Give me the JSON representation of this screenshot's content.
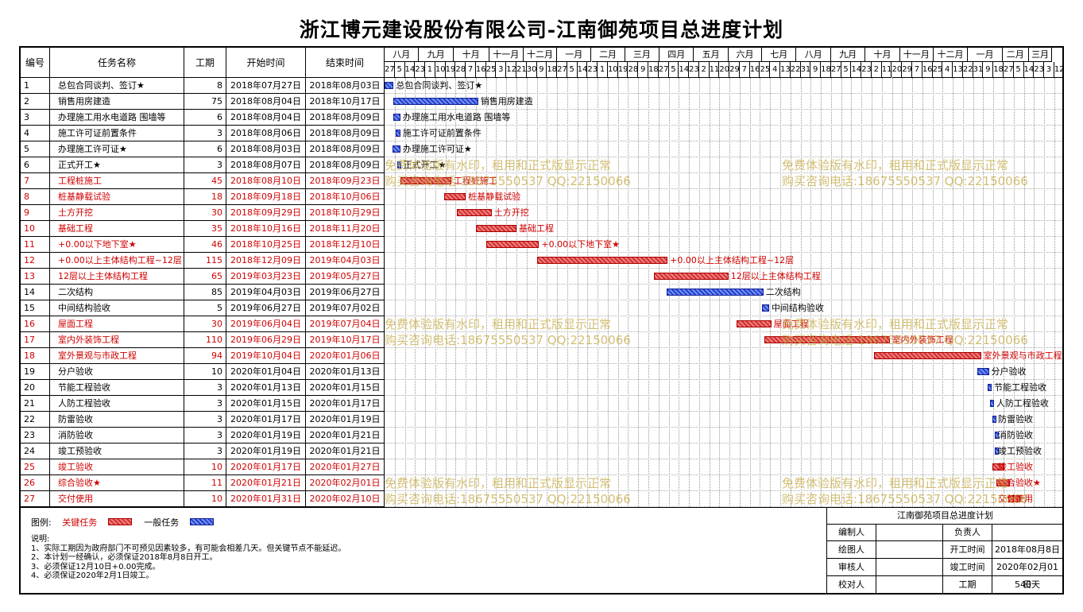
{
  "title": "浙江博元建设股份有限公司-江南御苑项目总进度计划",
  "columns": {
    "id": "编号",
    "name": "任务名称",
    "duration": "工期",
    "start": "开始时间",
    "end": "结束时间"
  },
  "months": [
    "八月",
    "九月",
    "十月",
    "十一月",
    "十二月",
    "一月",
    "二月",
    "三月",
    "四月",
    "五月",
    "六月",
    "七月",
    "八月",
    "九月",
    "十月",
    "十一月",
    "十二月",
    "一月",
    "二月",
    "三月"
  ],
  "days": [
    "27",
    "5",
    "14",
    "23",
    "1",
    "10",
    "19",
    "28",
    "7",
    "16",
    "25",
    "3",
    "12",
    "21",
    "30",
    "9",
    "18",
    "27",
    "5",
    "14",
    "23",
    "1",
    "10",
    "19",
    "28",
    "9",
    "18",
    "27",
    "5",
    "14",
    "23",
    "2",
    "11",
    "20",
    "29",
    "7",
    "16",
    "25",
    "4",
    "13",
    "22",
    "31",
    "9",
    "18",
    "27",
    "5",
    "14",
    "23",
    "2",
    "11",
    "20",
    "29",
    "7",
    "16",
    "25",
    "4",
    "13",
    "22",
    "31",
    "9",
    "18",
    "27",
    "5",
    "14",
    "23",
    "3",
    "12"
  ],
  "tasks": [
    {
      "id": "1",
      "name": "总包合同谈判、签订★",
      "duration": "8",
      "start": "2018年07月27日",
      "end": "2018年08月03日",
      "critical": false
    },
    {
      "id": "2",
      "name": "销售用房建造",
      "duration": "75",
      "start": "2018年08月04日",
      "end": "2018年10月17日",
      "critical": false
    },
    {
      "id": "3",
      "name": "办理施工用水电道路 围墙等",
      "duration": "6",
      "start": "2018年08月04日",
      "end": "2018年08月09日",
      "critical": false
    },
    {
      "id": "4",
      "name": "施工许可证前置条件",
      "duration": "3",
      "start": "2018年08月06日",
      "end": "2018年08月09日",
      "critical": false
    },
    {
      "id": "5",
      "name": "办理施工许可证★",
      "duration": "6",
      "start": "2018年08月03日",
      "end": "2018年08月09日",
      "critical": false
    },
    {
      "id": "6",
      "name": "正式开工★",
      "duration": "3",
      "start": "2018年08月07日",
      "end": "2018年08月09日",
      "critical": false
    },
    {
      "id": "7",
      "name": "工程桩施工",
      "duration": "45",
      "start": "2018年08月10日",
      "end": "2018年09月23日",
      "critical": true
    },
    {
      "id": "8",
      "name": "桩基静载试验",
      "duration": "18",
      "start": "2018年09月18日",
      "end": "2018年10月06日",
      "critical": true
    },
    {
      "id": "9",
      "name": "土方开挖",
      "duration": "30",
      "start": "2018年09月29日",
      "end": "2018年10月29日",
      "critical": true
    },
    {
      "id": "10",
      "name": "基础工程",
      "duration": "35",
      "start": "2018年10月16日",
      "end": "2018年11月20日",
      "critical": true
    },
    {
      "id": "11",
      "name": "+0.00以下地下室★",
      "duration": "46",
      "start": "2018年10月25日",
      "end": "2018年12月10日",
      "critical": true
    },
    {
      "id": "12",
      "name": "+0.00以上主体结构工程~12层",
      "duration": "115",
      "start": "2018年12月09日",
      "end": "2019年04月03日",
      "critical": true
    },
    {
      "id": "13",
      "name": "12层以上主体结构工程",
      "duration": "65",
      "start": "2019年03月23日",
      "end": "2019年05月27日",
      "critical": true
    },
    {
      "id": "14",
      "name": "二次结构",
      "duration": "85",
      "start": "2019年04月03日",
      "end": "2019年06月27日",
      "critical": false
    },
    {
      "id": "15",
      "name": "中间结构验收",
      "duration": "5",
      "start": "2019年06月27日",
      "end": "2019年07月02日",
      "critical": false
    },
    {
      "id": "16",
      "name": "屋面工程",
      "duration": "30",
      "start": "2019年06月04日",
      "end": "2019年07月04日",
      "critical": true
    },
    {
      "id": "17",
      "name": "室内外装饰工程",
      "duration": "110",
      "start": "2019年06月29日",
      "end": "2019年10月17日",
      "critical": true
    },
    {
      "id": "18",
      "name": "室外景观与市政工程",
      "duration": "94",
      "start": "2019年10月04日",
      "end": "2020年01月06日",
      "critical": true
    },
    {
      "id": "19",
      "name": "分户验收",
      "duration": "10",
      "start": "2020年01月04日",
      "end": "2020年01月13日",
      "critical": false
    },
    {
      "id": "20",
      "name": "节能工程验收",
      "duration": "3",
      "start": "2020年01月13日",
      "end": "2020年01月15日",
      "critical": false
    },
    {
      "id": "21",
      "name": "人防工程验收",
      "duration": "3",
      "start": "2020年01月15日",
      "end": "2020年01月17日",
      "critical": false
    },
    {
      "id": "22",
      "name": "防雷验收",
      "duration": "3",
      "start": "2020年01月17日",
      "end": "2020年01月19日",
      "critical": false
    },
    {
      "id": "23",
      "name": "消防验收",
      "duration": "3",
      "start": "2020年01月19日",
      "end": "2020年01月21日",
      "critical": false
    },
    {
      "id": "24",
      "name": "竣工预验收",
      "duration": "3",
      "start": "2020年01月19日",
      "end": "2020年01月21日",
      "critical": false
    },
    {
      "id": "25",
      "name": "竣工验收",
      "duration": "10",
      "start": "2020年01月17日",
      "end": "2020年01月27日",
      "critical": true
    },
    {
      "id": "26",
      "name": "综合验收★",
      "duration": "11",
      "start": "2020年01月21日",
      "end": "2020年02月01日",
      "critical": true
    },
    {
      "id": "27",
      "name": "交付使用",
      "duration": "10",
      "start": "2020年01月31日",
      "end": "2020年02月10日",
      "critical": true
    }
  ],
  "watermark": {
    "line1": "免费体验版有水印，租用和正式版显示正常",
    "line2": "购买咨询电话:18675550537 QQ:22150066"
  },
  "legend": {
    "label": "图例:",
    "critical": "关键任务",
    "normal": "一般任务"
  },
  "notes": {
    "heading": "说明:",
    "items": [
      "1、实际工期因为政府部门不可预见因素较多，有可能会相差几天。但关键节点不能延迟。",
      "2、本计划一经确认，必须保证2018年8月8日开工。",
      "3、必须保证12月10日+0.00完成。",
      "4、必须保证2020年2月1日竣工。"
    ]
  },
  "info": {
    "title": "江南御苑项目总进度计划",
    "rows": [
      {
        "label": "编制人",
        "value": "",
        "label2": "负责人",
        "value2": ""
      },
      {
        "label": "绘图人",
        "value": "",
        "label2": "开工时间",
        "value2": "2018年08月8日"
      },
      {
        "label": "审核人",
        "value": "",
        "label2": "竣工时间",
        "value2": "2020年02月01日"
      },
      {
        "label": "校对人",
        "value": "",
        "label2": "工期",
        "value2": "540天"
      }
    ]
  },
  "colors": {
    "critical": "#d00000",
    "critical_bar": "#d43030",
    "normal_bar": "#2040d0"
  }
}
